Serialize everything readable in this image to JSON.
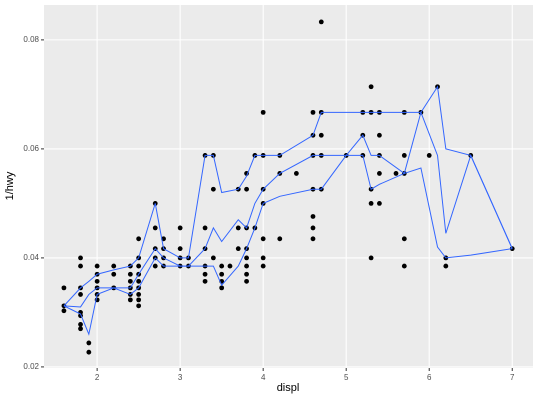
{
  "chart_data": {
    "type": "scatter",
    "x_label": "displ",
    "y_label": "1/hwy",
    "point_color": "#000000",
    "line_color": "#3366ff",
    "grid": true,
    "panel_color": "#ebebeb",
    "xlim": [
      1.36,
      7.25
    ],
    "ylim": [
      0.0198,
      0.0864
    ],
    "xticks": [
      2,
      3,
      4,
      5,
      6,
      7
    ],
    "yticks": [
      0.02,
      0.04,
      0.06,
      0.08
    ],
    "x": [
      1.6,
      1.6,
      1.6,
      1.8,
      1.8,
      1.8,
      1.8,
      1.8,
      1.8,
      1.8,
      1.8,
      1.9,
      1.9,
      2.0,
      2.0,
      2.0,
      2.0,
      2.0,
      2.0,
      2.2,
      2.2,
      2.2,
      2.4,
      2.4,
      2.4,
      2.4,
      2.4,
      2.4,
      2.5,
      2.5,
      2.5,
      2.5,
      2.5,
      2.5,
      2.5,
      2.5,
      2.5,
      2.7,
      2.7,
      2.7,
      2.7,
      2.7,
      2.8,
      2.8,
      2.8,
      2.8,
      3.0,
      3.0,
      3.0,
      3.0,
      3.1,
      3.1,
      3.3,
      3.3,
      3.3,
      3.3,
      3.3,
      3.3,
      3.4,
      3.4,
      3.4,
      3.5,
      3.5,
      3.5,
      3.5,
      3.6,
      3.7,
      3.7,
      3.7,
      3.8,
      3.8,
      3.8,
      3.8,
      3.8,
      3.8,
      3.8,
      3.8,
      3.9,
      3.9,
      4.0,
      4.0,
      4.0,
      4.0,
      4.0,
      4.0,
      4.0,
      4.2,
      4.2,
      4.2,
      4.4,
      4.6,
      4.6,
      4.6,
      4.6,
      4.6,
      4.6,
      4.6,
      4.7,
      4.7,
      4.7,
      4.7,
      4.7,
      5.0,
      5.2,
      5.2,
      5.2,
      5.3,
      5.3,
      5.3,
      5.3,
      5.3,
      5.4,
      5.4,
      5.4,
      5.4,
      5.4,
      5.6,
      5.7,
      5.7,
      5.7,
      5.7,
      5.7,
      5.9,
      6.0,
      6.1,
      6.2,
      6.2,
      6.5,
      7.0
    ],
    "y": [
      0.0345,
      0.0312,
      0.0303,
      0.04,
      0.0385,
      0.0345,
      0.0333,
      0.03,
      0.0294,
      0.0278,
      0.027,
      0.0244,
      0.0227,
      0.0385,
      0.037,
      0.0357,
      0.0345,
      0.0333,
      0.0323,
      0.0385,
      0.037,
      0.0345,
      0.0385,
      0.037,
      0.0357,
      0.0345,
      0.0333,
      0.0323,
      0.0435,
      0.04,
      0.0385,
      0.037,
      0.0357,
      0.0345,
      0.0333,
      0.0323,
      0.0312,
      0.05,
      0.0455,
      0.0417,
      0.04,
      0.0385,
      0.0435,
      0.0417,
      0.04,
      0.0385,
      0.0455,
      0.0417,
      0.04,
      0.0385,
      0.04,
      0.0385,
      0.0588,
      0.0455,
      0.0417,
      0.0385,
      0.037,
      0.0357,
      0.0588,
      0.0526,
      0.04,
      0.0385,
      0.037,
      0.0357,
      0.0345,
      0.0385,
      0.0526,
      0.0455,
      0.0417,
      0.0555,
      0.0526,
      0.0455,
      0.0417,
      0.04,
      0.0385,
      0.037,
      0.0357,
      0.0588,
      0.0455,
      0.0667,
      0.0588,
      0.0526,
      0.05,
      0.0435,
      0.04,
      0.0385,
      0.0588,
      0.0555,
      0.0435,
      0.0555,
      0.0667,
      0.0625,
      0.0588,
      0.0526,
      0.0476,
      0.0455,
      0.0435,
      0.0833,
      0.0667,
      0.0625,
      0.0588,
      0.0526,
      0.0588,
      0.0667,
      0.0625,
      0.0588,
      0.0714,
      0.0667,
      0.0526,
      0.05,
      0.04,
      0.0667,
      0.0625,
      0.0588,
      0.0555,
      0.05,
      0.0555,
      0.0667,
      0.0588,
      0.0555,
      0.0435,
      0.0385,
      0.0667,
      0.0588,
      0.0714,
      0.04,
      0.0385,
      0.0588,
      0.0417
    ],
    "line_x": [
      1.6,
      1.8,
      1.9,
      2.0,
      2.2,
      2.4,
      2.5,
      2.7,
      2.8,
      3.0,
      3.1,
      3.3,
      3.4,
      3.5,
      3.7,
      3.8,
      3.9,
      4.0,
      4.2,
      4.6,
      4.7,
      5.0,
      5.2,
      5.3,
      5.4,
      5.7,
      5.9,
      6.1,
      6.2,
      6.5,
      7.0
    ],
    "lines": [
      {
        "values": [
          0.0312,
          0.0345,
          0.0357,
          0.037,
          0.0378,
          0.0385,
          0.04,
          0.05,
          0.0417,
          0.04,
          0.04,
          0.0588,
          0.0588,
          0.052,
          0.0526,
          0.055,
          0.0588,
          0.0588,
          0.0588,
          0.0625,
          0.0667,
          0.0667,
          0.0667,
          0.0667,
          0.0667,
          0.0667,
          0.0667,
          0.0714,
          0.06,
          0.0588,
          0.0417
        ]
      },
      {
        "values": [
          0.0312,
          0.031,
          0.0333,
          0.0345,
          0.0345,
          0.0345,
          0.037,
          0.0417,
          0.04,
          0.0385,
          0.0385,
          0.0417,
          0.0455,
          0.043,
          0.047,
          0.0455,
          0.05,
          0.0526,
          0.0555,
          0.0588,
          0.0588,
          0.0588,
          0.0625,
          0.0588,
          0.0588,
          0.0555,
          0.0667,
          0.0588,
          0.0445,
          0.0588,
          0.0417
        ]
      },
      {
        "values": [
          0.0312,
          0.0297,
          0.026,
          0.0333,
          0.0345,
          0.0333,
          0.0345,
          0.04,
          0.0385,
          0.0385,
          0.0385,
          0.0385,
          0.0385,
          0.035,
          0.0385,
          0.0417,
          0.0455,
          0.05,
          0.0513,
          0.0526,
          0.0526,
          0.0588,
          0.0588,
          0.0526,
          0.0535,
          0.0555,
          0.0565,
          0.042,
          0.04,
          0.0405,
          0.0417
        ]
      }
    ]
  }
}
